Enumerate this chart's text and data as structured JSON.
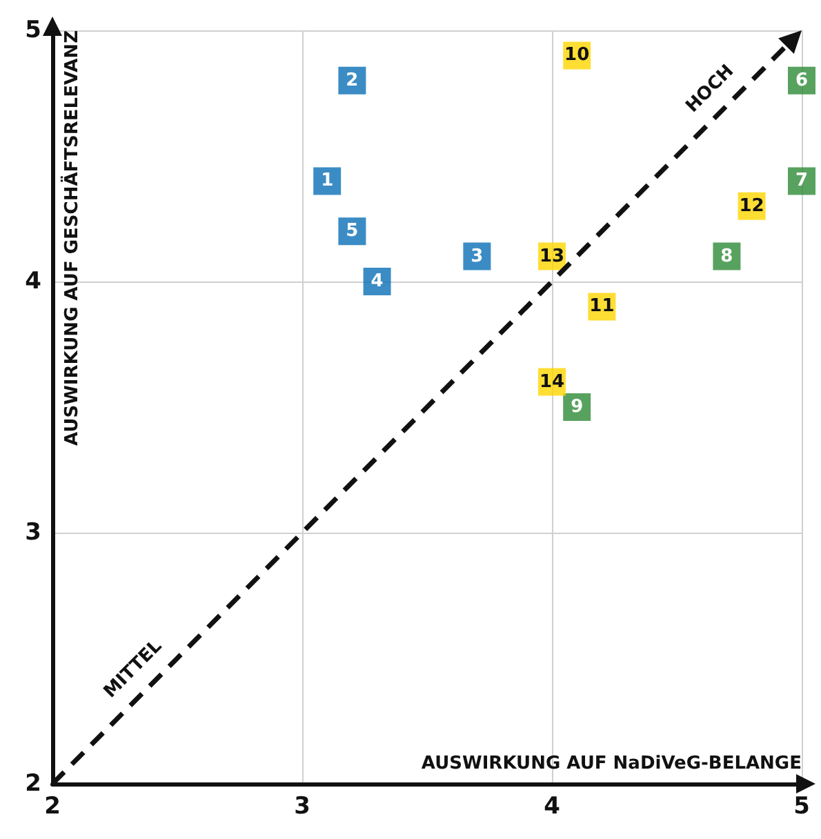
{
  "chart_data": {
    "type": "scatter",
    "xlabel": "AUSWIRKUNG AUF NaDiVeG-BELANGE",
    "ylabel": "AUSWIRKUNG AUF GESCHÄFTSRELEVANZ",
    "xlim": [
      2,
      5
    ],
    "xticks": [
      2,
      3,
      4,
      5
    ],
    "ylim": [
      2,
      5
    ],
    "yticks": [
      2,
      3,
      4,
      5
    ],
    "grid": true,
    "marker": "square",
    "series": [
      {
        "color": "#0a6fb5",
        "x": [
          3.1,
          3.2,
          3.7,
          3.3,
          3.2
        ],
        "values": [
          4.4,
          4.8,
          4.1,
          4.0,
          4.2
        ]
      },
      {
        "color": "#2e8b37",
        "x": [
          5.0,
          5.0,
          4.7,
          4.1
        ],
        "values": [
          4.8,
          4.4,
          4.1,
          3.5
        ]
      },
      {
        "color": "#ffd600",
        "x": [
          4.1,
          4.2,
          4.8,
          4.0,
          4.0
        ],
        "values": [
          4.9,
          3.9,
          4.3,
          4.1,
          3.6
        ]
      }
    ],
    "annotations": [
      "MITTEL",
      "HOCH",
      {
        "text": "1",
        "x": 3.1,
        "y": 4.4
      },
      {
        "text": "2",
        "x": 3.2,
        "y": 4.8
      },
      {
        "text": "3",
        "x": 3.7,
        "y": 4.1
      },
      {
        "text": "4",
        "x": 3.3,
        "y": 4.0
      },
      {
        "text": "5",
        "x": 3.2,
        "y": 4.2
      },
      {
        "text": "6",
        "x": 5.0,
        "y": 4.8
      },
      {
        "text": "7",
        "x": 5.0,
        "y": 4.4
      },
      {
        "text": "8",
        "x": 4.7,
        "y": 4.1
      },
      {
        "text": "9",
        "x": 4.1,
        "y": 3.5
      },
      {
        "text": "10",
        "x": 4.1,
        "y": 4.9
      },
      {
        "text": "11",
        "x": 4.2,
        "y": 3.9
      },
      {
        "text": "12",
        "x": 4.8,
        "y": 4.3
      },
      {
        "text": "13",
        "x": 4.0,
        "y": 4.1
      },
      {
        "text": "14",
        "x": 4.0,
        "y": 3.6
      }
    ]
  }
}
